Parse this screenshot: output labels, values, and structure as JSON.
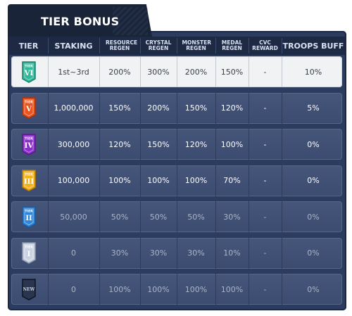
{
  "title": "TIER BONUS",
  "headers": [
    {
      "key": "tier",
      "label": "TIER",
      "small": false
    },
    {
      "key": "staking",
      "label": "STAKING",
      "small": false
    },
    {
      "key": "resource",
      "label": "RESOURCE REGEN",
      "small": true
    },
    {
      "key": "crystal",
      "label": "CRYSTAL REGEN",
      "small": true
    },
    {
      "key": "monster",
      "label": "MONSTER REGEN",
      "small": true
    },
    {
      "key": "medal",
      "label": "MEDAL REGEN",
      "small": true
    },
    {
      "key": "cvc",
      "label": "CVC REWARD",
      "small": true
    },
    {
      "key": "troops",
      "label": "TROOPS BUFF",
      "small": false
    }
  ],
  "rows": [
    {
      "tier_label": "TIER",
      "tier_numeral": "VI",
      "badge_color": "#2fb99a",
      "badge_dark": "#1d7e68",
      "staking": "1st~3rd",
      "resource": "200%",
      "crystal": "300%",
      "monster": "200%",
      "medal": "150%",
      "cvc": "-",
      "troops": "10%",
      "highlight": true
    },
    {
      "tier_label": "TIER",
      "tier_numeral": "V",
      "badge_color": "#e8541e",
      "badge_dark": "#a8330c",
      "staking": "1,000,000",
      "resource": "150%",
      "crystal": "200%",
      "monster": "150%",
      "medal": "120%",
      "cvc": "-",
      "troops": "5%"
    },
    {
      "tier_label": "TIER",
      "tier_numeral": "IV",
      "badge_color": "#8b2fc9",
      "badge_dark": "#5a1a88",
      "staking": "300,000",
      "resource": "120%",
      "crystal": "150%",
      "monster": "120%",
      "medal": "100%",
      "cvc": "-",
      "troops": "0%"
    },
    {
      "tier_label": "TIER",
      "tier_numeral": "III",
      "badge_color": "#f2b21a",
      "badge_dark": "#b57a08",
      "staking": "100,000",
      "resource": "100%",
      "crystal": "100%",
      "monster": "100%",
      "medal": "70%",
      "cvc": "-",
      "troops": "0%"
    },
    {
      "tier_label": "TIER",
      "tier_numeral": "II",
      "badge_color": "#2f86d8",
      "badge_dark": "#1a5a9c",
      "staking": "50,000",
      "resource": "50%",
      "crystal": "50%",
      "monster": "50%",
      "medal": "30%",
      "cvc": "-",
      "troops": "0%",
      "dim": true
    },
    {
      "tier_label": "TIER",
      "tier_numeral": "I",
      "badge_color": "#c9d2e2",
      "badge_dark": "#8d98ad",
      "staking": "0",
      "resource": "30%",
      "crystal": "30%",
      "monster": "30%",
      "medal": "10%",
      "cvc": "-",
      "troops": "0%",
      "dim": true
    },
    {
      "tier_label": "",
      "tier_numeral": "NEW",
      "badge_color": "#2a3650",
      "badge_dark": "#151c2c",
      "staking": "0",
      "resource": "100%",
      "crystal": "100%",
      "monster": "100%",
      "medal": "100%",
      "cvc": "-",
      "troops": "0%",
      "dim": true
    }
  ]
}
